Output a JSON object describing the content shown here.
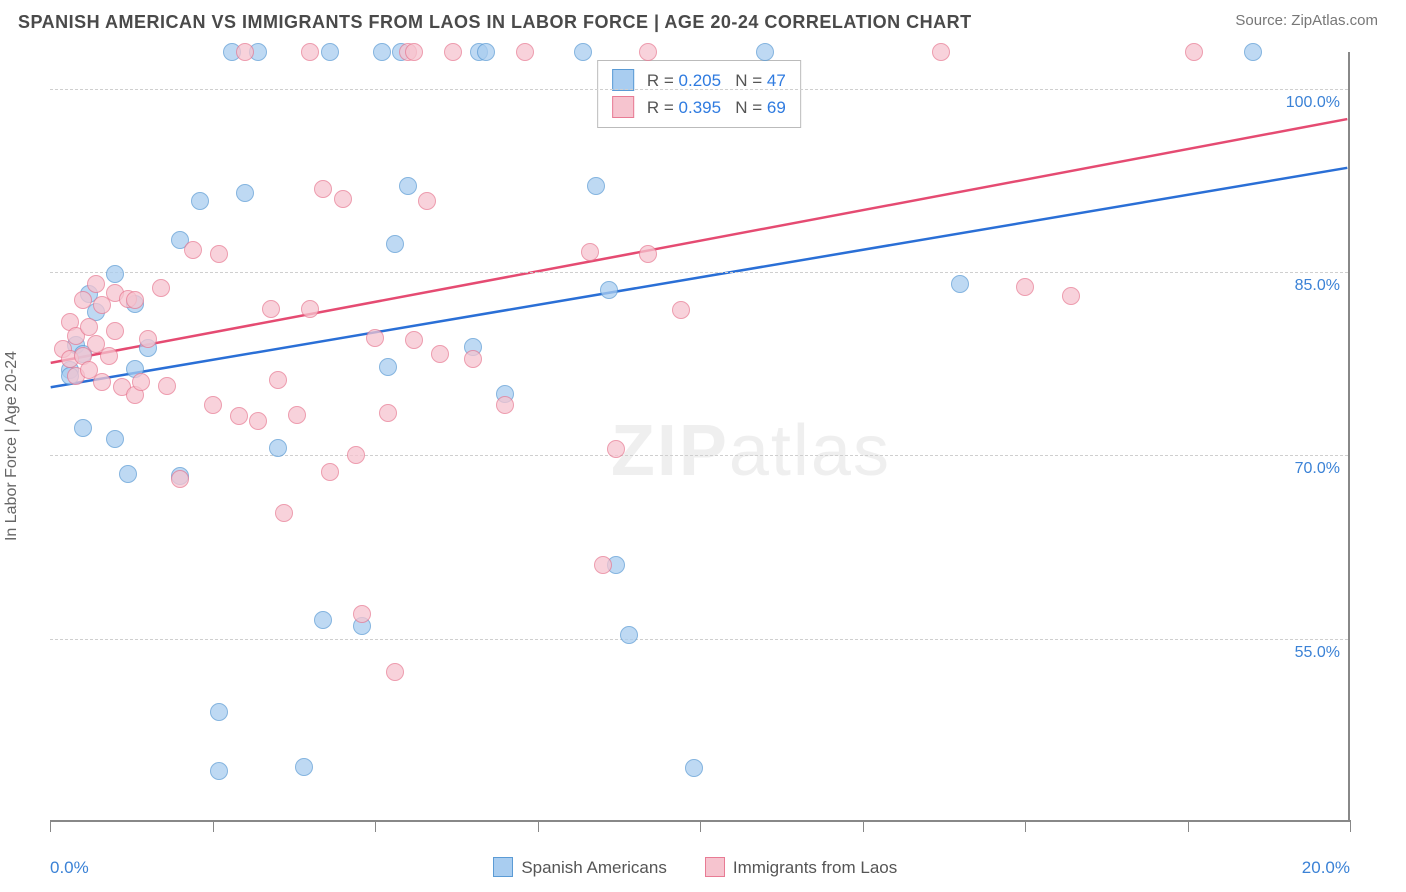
{
  "title": "SPANISH AMERICAN VS IMMIGRANTS FROM LAOS IN LABOR FORCE | AGE 20-24 CORRELATION CHART",
  "source_label": "Source: ",
  "source_name": "ZipAtlas.com",
  "yaxis_title": "In Labor Force | Age 20-24",
  "watermark_bold": "ZIP",
  "watermark_light": "atlas",
  "chart": {
    "type": "scatter",
    "xlim": [
      0,
      20
    ],
    "ylim": [
      40,
      103
    ],
    "x_ticks": [
      0,
      2.5,
      5,
      7.5,
      10,
      12.5,
      15,
      17.5,
      20
    ],
    "x_tick_labels_shown": {
      "0": "0.0%",
      "20": "20.0%"
    },
    "y_gridlines": [
      55,
      70,
      85,
      100
    ],
    "y_labels": {
      "55": "55.0%",
      "70": "70.0%",
      "85": "85.0%",
      "100": "100.0%"
    },
    "grid_color": "#cfcfcf",
    "axis_color": "#888888",
    "background_color": "#ffffff",
    "label_color": "#3b82d6",
    "series": [
      {
        "name": "Spanish Americans",
        "legend_label": "Spanish Americans",
        "fill": "#a9cdf0",
        "stroke": "#5b9bd5",
        "marker_size": 18,
        "trend": {
          "x1": 0,
          "y1": 75.5,
          "x2": 20,
          "y2": 93.5,
          "color": "#2a6fd6",
          "width": 2.5
        },
        "stats": {
          "R": "0.205",
          "N": "47"
        },
        "points": [
          [
            0.3,
            77
          ],
          [
            0.3,
            76.5
          ],
          [
            0.4,
            79
          ],
          [
            0.5,
            72.2
          ],
          [
            0.5,
            78.3
          ],
          [
            0.6,
            83.2
          ],
          [
            0.7,
            81.7
          ],
          [
            1.0,
            71.3
          ],
          [
            1.0,
            84.8
          ],
          [
            1.2,
            68.5
          ],
          [
            1.3,
            82.4
          ],
          [
            1.3,
            77.1
          ],
          [
            1.5,
            78.8
          ],
          [
            2.0,
            87.6
          ],
          [
            2.0,
            68.3
          ],
          [
            2.3,
            90.8
          ],
          [
            2.6,
            49.0
          ],
          [
            2.6,
            44.2
          ],
          [
            2.8,
            103
          ],
          [
            3.0,
            91.5
          ],
          [
            3.2,
            103
          ],
          [
            3.5,
            70.6
          ],
          [
            3.9,
            44.5
          ],
          [
            4.2,
            56.5
          ],
          [
            4.3,
            103
          ],
          [
            4.8,
            56.0
          ],
          [
            5.1,
            103
          ],
          [
            5.2,
            77.2
          ],
          [
            5.3,
            87.3
          ],
          [
            5.4,
            103
          ],
          [
            5.5,
            92.0
          ],
          [
            6.5,
            78.9
          ],
          [
            6.6,
            103
          ],
          [
            6.7,
            103
          ],
          [
            7.0,
            75.0
          ],
          [
            8.2,
            103
          ],
          [
            8.4,
            92.0
          ],
          [
            8.6,
            83.5
          ],
          [
            8.7,
            61.0
          ],
          [
            8.9,
            55.3
          ],
          [
            9.9,
            44.4
          ],
          [
            11.0,
            103
          ],
          [
            14.0,
            84.0
          ],
          [
            18.5,
            103
          ]
        ]
      },
      {
        "name": "Immigrants from Laos",
        "legend_label": "Immigrants from Laos",
        "fill": "#f6c4cf",
        "stroke": "#e87b94",
        "marker_size": 18,
        "trend": {
          "x1": 0,
          "y1": 77.5,
          "x2": 20,
          "y2": 97.5,
          "color": "#e54b72",
          "width": 2.5
        },
        "stats": {
          "R": "0.395",
          "N": "69"
        },
        "points": [
          [
            0.2,
            78.7
          ],
          [
            0.3,
            77.9
          ],
          [
            0.3,
            80.9
          ],
          [
            0.4,
            79.8
          ],
          [
            0.4,
            76.5
          ],
          [
            0.5,
            78.1
          ],
          [
            0.5,
            82.7
          ],
          [
            0.6,
            80.5
          ],
          [
            0.6,
            77.0
          ],
          [
            0.7,
            84.0
          ],
          [
            0.7,
            79.1
          ],
          [
            0.8,
            82.3
          ],
          [
            0.8,
            76.0
          ],
          [
            0.9,
            78.1
          ],
          [
            1.0,
            83.3
          ],
          [
            1.0,
            80.2
          ],
          [
            1.1,
            75.6
          ],
          [
            1.2,
            82.8
          ],
          [
            1.3,
            74.9
          ],
          [
            1.3,
            82.7
          ],
          [
            1.4,
            76.0
          ],
          [
            1.5,
            79.5
          ],
          [
            1.7,
            83.7
          ],
          [
            1.8,
            75.7
          ],
          [
            2.0,
            68.1
          ],
          [
            2.2,
            86.8
          ],
          [
            2.5,
            74.1
          ],
          [
            2.6,
            86.5
          ],
          [
            2.9,
            73.2
          ],
          [
            3.0,
            103
          ],
          [
            3.2,
            72.8
          ],
          [
            3.4,
            82.0
          ],
          [
            3.5,
            76.2
          ],
          [
            3.6,
            65.3
          ],
          [
            3.8,
            73.3
          ],
          [
            4.0,
            103
          ],
          [
            4.0,
            82.0
          ],
          [
            4.2,
            91.8
          ],
          [
            4.3,
            68.6
          ],
          [
            4.5,
            91.0
          ],
          [
            4.7,
            70.0
          ],
          [
            4.8,
            57.0
          ],
          [
            5.0,
            79.6
          ],
          [
            5.2,
            73.5
          ],
          [
            5.3,
            52.3
          ],
          [
            5.5,
            103
          ],
          [
            5.6,
            79.4
          ],
          [
            5.6,
            103
          ],
          [
            5.8,
            90.8
          ],
          [
            6.0,
            78.3
          ],
          [
            6.2,
            103
          ],
          [
            6.5,
            77.9
          ],
          [
            7.0,
            74.1
          ],
          [
            7.3,
            103
          ],
          [
            8.3,
            86.6
          ],
          [
            8.5,
            61.0
          ],
          [
            8.7,
            70.5
          ],
          [
            9.2,
            86.5
          ],
          [
            9.2,
            103
          ],
          [
            9.7,
            81.9
          ],
          [
            13.7,
            103
          ],
          [
            15.0,
            83.8
          ],
          [
            15.7,
            83.0
          ],
          [
            17.6,
            103
          ]
        ]
      }
    ]
  },
  "stats_box": {
    "row_label_r": "R = ",
    "row_label_n": "N = "
  }
}
